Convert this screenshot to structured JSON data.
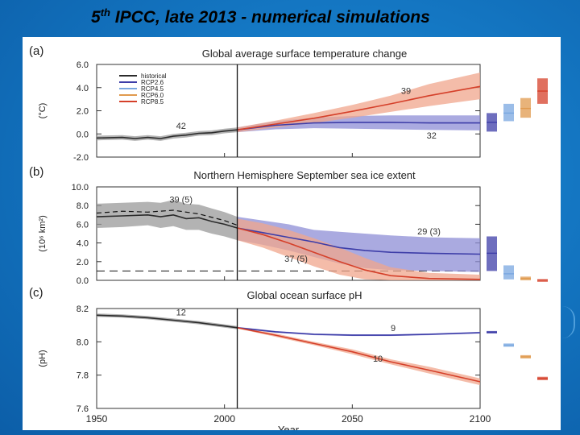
{
  "slide": {
    "title_prefix": "5",
    "title_sup": "th",
    "title_rest": " IPCC, late 2013 - numerical simulations"
  },
  "colors": {
    "historical": "#2b2b2b",
    "rcp26": "#3d3da8",
    "rcp45": "#79a7e0",
    "rcp60": "#e09a4e",
    "rcp85": "#d5402a",
    "band_hist": "#9a9a9a",
    "band_26": "#8d8ed6",
    "band_85": "#f0a58c"
  },
  "legend": [
    "historical",
    "RCP2.6",
    "RCP4.5",
    "RCP6.0",
    "RCP8.5"
  ],
  "chart_data": [
    {
      "type": "line",
      "panel": "(a)",
      "title": "Global average surface temperature change",
      "ylabel": "(°C)",
      "xlabel": "",
      "ylim": [
        -2.0,
        6.0
      ],
      "yticks": [
        "-2.0",
        "0.0",
        "2.0",
        "4.0",
        "6.0"
      ],
      "ytick_values": [
        -2.0,
        0.0,
        2.0,
        4.0,
        6.0
      ],
      "xlim": [
        1950,
        2100
      ],
      "divider_year": 2005,
      "annotations": [
        {
          "text": "42",
          "x": 1983,
          "y": 0.45
        },
        {
          "text": "39",
          "x": 2071,
          "y": 3.45
        },
        {
          "text": "32",
          "x": 2081,
          "y": -0.4
        }
      ],
      "series": [
        {
          "name": "historical",
          "x": [
            1950,
            1960,
            1965,
            1970,
            1975,
            1980,
            1985,
            1990,
            1995,
            2000,
            2005
          ],
          "y": [
            -0.35,
            -0.3,
            -0.4,
            -0.3,
            -0.4,
            -0.2,
            -0.1,
            0.05,
            0.1,
            0.25,
            0.35
          ],
          "lo": [
            -0.55,
            -0.5,
            -0.6,
            -0.5,
            -0.6,
            -0.4,
            -0.3,
            -0.15,
            -0.1,
            0.05,
            0.15
          ],
          "hi": [
            -0.15,
            -0.1,
            -0.2,
            -0.1,
            -0.2,
            0.0,
            0.1,
            0.25,
            0.3,
            0.45,
            0.55
          ]
        },
        {
          "name": "RCP2.6",
          "x": [
            2005,
            2020,
            2035,
            2050,
            2065,
            2080,
            2100
          ],
          "y": [
            0.35,
            0.75,
            0.95,
            1.0,
            1.0,
            0.95,
            0.95
          ],
          "lo": [
            0.15,
            0.4,
            0.5,
            0.45,
            0.4,
            0.35,
            0.3
          ],
          "hi": [
            0.55,
            1.1,
            1.4,
            1.55,
            1.6,
            1.6,
            1.6
          ]
        },
        {
          "name": "RCP8.5",
          "x": [
            2005,
            2020,
            2035,
            2050,
            2065,
            2080,
            2100
          ],
          "y": [
            0.35,
            0.85,
            1.35,
            1.95,
            2.6,
            3.3,
            4.1
          ],
          "lo": [
            0.15,
            0.55,
            0.95,
            1.4,
            1.9,
            2.4,
            3.0
          ],
          "hi": [
            0.55,
            1.15,
            1.8,
            2.5,
            3.3,
            4.3,
            5.3
          ]
        }
      ],
      "side_bars": [
        {
          "name": "RCP2.6",
          "lo": 0.2,
          "hi": 1.8,
          "mean": 1.0
        },
        {
          "name": "RCP4.5",
          "lo": 1.1,
          "hi": 2.6,
          "mean": 1.8
        },
        {
          "name": "RCP6.0",
          "lo": 1.4,
          "hi": 3.1,
          "mean": 2.2
        },
        {
          "name": "RCP8.5",
          "lo": 2.6,
          "hi": 4.8,
          "mean": 3.7
        }
      ]
    },
    {
      "type": "line",
      "panel": "(b)",
      "title": "Northern Hemisphere September sea ice extent",
      "ylabel": "(10⁶ km²)",
      "xlabel": "",
      "ylim": [
        0.0,
        10.0
      ],
      "yticks": [
        "0.0",
        "2.0",
        "4.0",
        "6.0",
        "8.0",
        "10.0"
      ],
      "ytick_values": [
        0,
        2,
        4,
        6,
        8,
        10
      ],
      "xlim": [
        1950,
        2100
      ],
      "divider_year": 2005,
      "threshold": 1.0,
      "annotations": [
        {
          "text": "39 (5)",
          "x": 1983,
          "y": 8.3
        },
        {
          "text": "29 (3)",
          "x": 2080,
          "y": 4.9
        },
        {
          "text": "37 (5)",
          "x": 2028,
          "y": 2.0
        }
      ],
      "series": [
        {
          "name": "historical",
          "x": [
            1950,
            1960,
            1970,
            1975,
            1980,
            1985,
            1990,
            1995,
            2000,
            2005
          ],
          "y": [
            6.8,
            6.9,
            7.0,
            6.8,
            7.0,
            6.6,
            6.7,
            6.3,
            6.0,
            5.6
          ],
          "lo": [
            5.6,
            5.7,
            5.9,
            5.6,
            5.8,
            5.4,
            5.4,
            5.0,
            4.7,
            4.3
          ],
          "hi": [
            8.2,
            8.3,
            8.4,
            8.3,
            8.6,
            8.2,
            8.1,
            7.7,
            7.3,
            6.8
          ]
        },
        {
          "name": "observations",
          "x": [
            1950,
            1960,
            1970,
            1980,
            1990,
            2000,
            2005
          ],
          "y": [
            7.2,
            7.4,
            7.3,
            7.5,
            7.1,
            6.4,
            5.9
          ],
          "lo": [
            7.2,
            7.4,
            7.3,
            7.5,
            7.1,
            6.4,
            5.9
          ],
          "hi": [
            7.2,
            7.4,
            7.3,
            7.5,
            7.1,
            6.4,
            5.9
          ]
        },
        {
          "name": "RCP2.6",
          "x": [
            2005,
            2015,
            2025,
            2035,
            2045,
            2055,
            2065,
            2080,
            2100
          ],
          "y": [
            5.6,
            5.1,
            4.6,
            4.1,
            3.5,
            3.2,
            3.0,
            2.9,
            2.8
          ],
          "lo": [
            4.3,
            3.8,
            3.2,
            2.5,
            1.8,
            1.3,
            1.1,
            1.0,
            0.9
          ],
          "hi": [
            6.8,
            6.4,
            6.0,
            5.4,
            5.2,
            5.0,
            4.8,
            4.6,
            4.5
          ]
        },
        {
          "name": "RCP8.5",
          "x": [
            2005,
            2015,
            2025,
            2035,
            2045,
            2055,
            2065,
            2080,
            2100
          ],
          "y": [
            5.6,
            4.9,
            4.0,
            3.0,
            2.0,
            1.1,
            0.5,
            0.2,
            0.1
          ],
          "lo": [
            4.3,
            3.5,
            2.5,
            1.5,
            0.6,
            0.1,
            0.0,
            0.0,
            0.0
          ],
          "hi": [
            6.6,
            6.1,
            5.4,
            4.5,
            3.5,
            2.4,
            1.4,
            0.8,
            0.6
          ]
        }
      ],
      "side_bars": [
        {
          "name": "RCP2.6",
          "lo": 1.0,
          "hi": 4.7,
          "mean": 2.9
        },
        {
          "name": "RCP4.5",
          "lo": 0.1,
          "hi": 1.6,
          "mean": 0.7
        },
        {
          "name": "RCP6.0",
          "lo": 0.0,
          "hi": 0.4,
          "mean": 0.2
        },
        {
          "name": "RCP8.5",
          "lo": 0.0,
          "hi": 0.1,
          "mean": 0.05
        }
      ]
    },
    {
      "type": "line",
      "panel": "(c)",
      "title": "Global ocean surface pH",
      "ylabel": "(pH)",
      "xlabel": "Year",
      "ylim": [
        7.6,
        8.2
      ],
      "yticks": [
        "7.6",
        "7.8",
        "8.0",
        "8.2"
      ],
      "ytick_values": [
        7.6,
        7.8,
        8.0,
        8.2
      ],
      "xlim": [
        1950,
        2100
      ],
      "xticks": [
        "1950",
        "2000",
        "2050",
        "2100"
      ],
      "xtick_values": [
        1950,
        2000,
        2050,
        2100
      ],
      "divider_year": 2005,
      "annotations": [
        {
          "text": "12",
          "x": 1983,
          "y": 8.16
        },
        {
          "text": "9",
          "x": 2066,
          "y": 8.065
        },
        {
          "text": "10",
          "x": 2060,
          "y": 7.88
        }
      ],
      "series": [
        {
          "name": "historical",
          "x": [
            1950,
            1960,
            1970,
            1980,
            1990,
            2000,
            2005
          ],
          "y": [
            8.16,
            8.155,
            8.145,
            8.13,
            8.115,
            8.095,
            8.085
          ],
          "lo": [
            8.15,
            8.145,
            8.135,
            8.12,
            8.105,
            8.085,
            8.075
          ],
          "hi": [
            8.17,
            8.165,
            8.155,
            8.14,
            8.125,
            8.105,
            8.095
          ]
        },
        {
          "name": "RCP2.6",
          "x": [
            2005,
            2020,
            2035,
            2050,
            2065,
            2080,
            2100
          ],
          "y": [
            8.085,
            8.06,
            8.045,
            8.04,
            8.04,
            8.045,
            8.055
          ],
          "lo": [
            8.08,
            8.055,
            8.04,
            8.035,
            8.035,
            8.04,
            8.05
          ],
          "hi": [
            8.09,
            8.065,
            8.05,
            8.045,
            8.045,
            8.05,
            8.06
          ]
        },
        {
          "name": "RCP8.5",
          "x": [
            2005,
            2020,
            2035,
            2050,
            2065,
            2080,
            2100
          ],
          "y": [
            8.085,
            8.04,
            7.99,
            7.94,
            7.88,
            7.83,
            7.76
          ],
          "lo": [
            8.08,
            8.03,
            7.98,
            7.925,
            7.865,
            7.81,
            7.74
          ],
          "hi": [
            8.09,
            8.05,
            8.0,
            7.955,
            7.895,
            7.85,
            7.78
          ]
        }
      ],
      "side_bars": [
        {
          "name": "RCP2.6",
          "lo": 8.05,
          "hi": 8.065,
          "mean": 8.058
        },
        {
          "name": "RCP4.5",
          "lo": 7.97,
          "hi": 7.99,
          "mean": 7.98
        },
        {
          "name": "RCP6.0",
          "lo": 7.9,
          "hi": 7.92,
          "mean": 7.91
        },
        {
          "name": "RCP8.5",
          "lo": 7.77,
          "hi": 7.79,
          "mean": 7.78
        }
      ]
    }
  ]
}
